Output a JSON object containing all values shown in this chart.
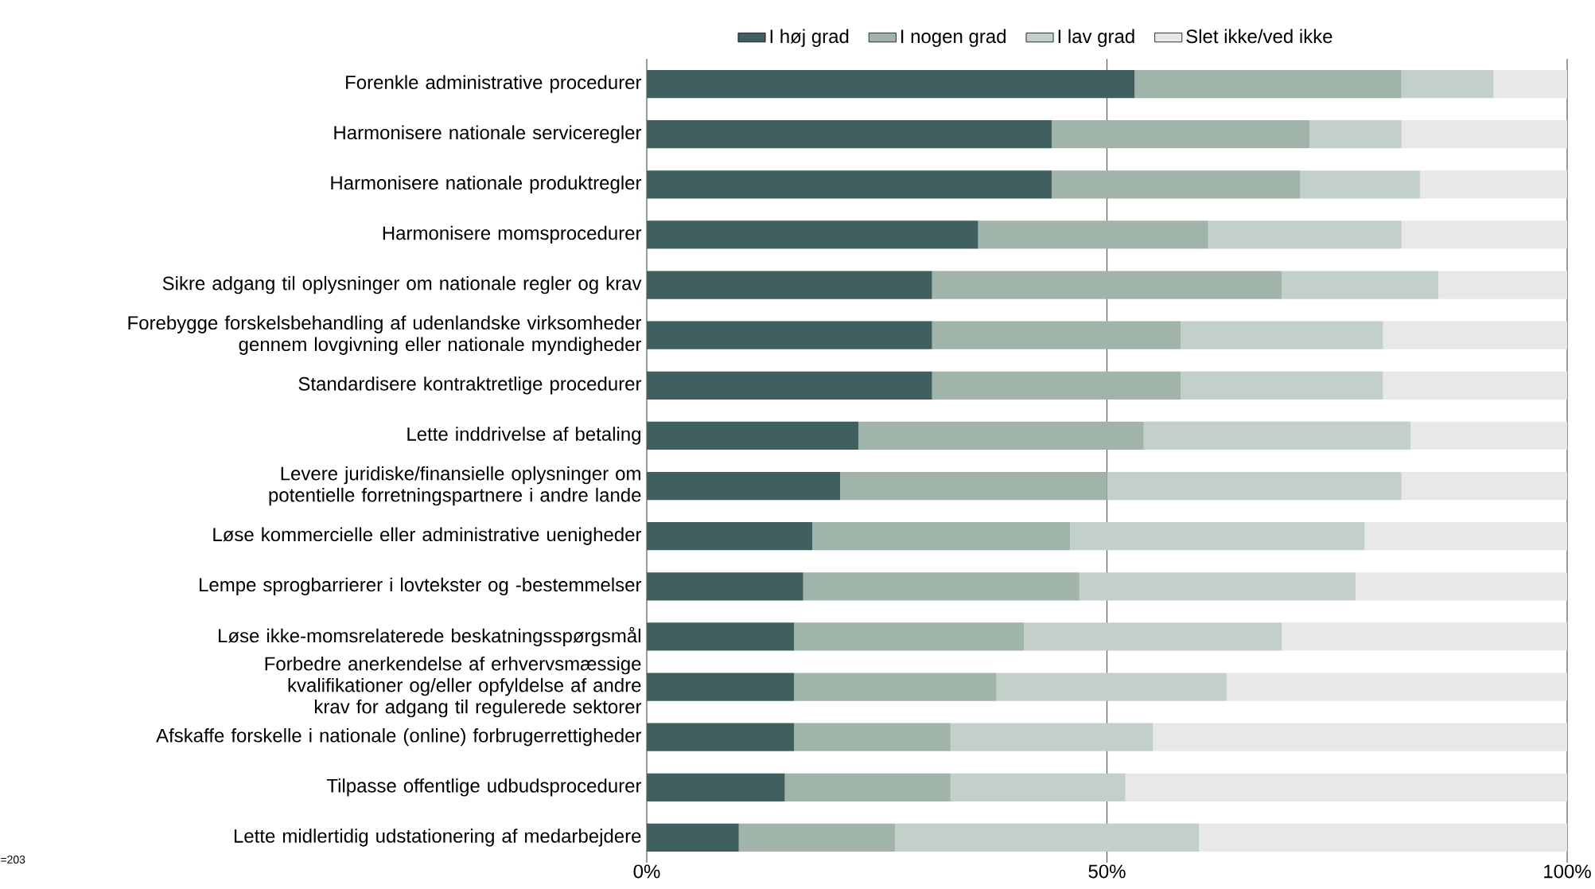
{
  "chart_data": {
    "type": "bar",
    "orientation": "horizontal",
    "stacked": true,
    "categories": [
      "Forenkle administrative procedurer",
      "Harmonisere nationale serviceregler",
      "Harmonisere nationale produktregler",
      "Harmonisere momsprocedurer",
      "Sikre adgang til oplysninger om nationale regler og krav",
      "Forebygge forskelsbehandling af udenlandske virksomheder gennem lovgivning eller nationale myndigheder",
      "Standardisere kontraktretlige procedurer",
      "Lette inddrivelse af betaling",
      "Levere juridiske/finansielle oplysninger om potentielle forretningspartnere i andre lande",
      "Løse kommercielle eller administrative uenigheder",
      "Lempe sprogbarrierer i lovtekster og -bestemmelser",
      "Løse ikke-momsrelaterede beskatningsspørgsmål",
      "Forbedre anerkendelse af erhvervsmæssige kvalifikationer og/eller opfyldelse af andre krav for adgang til regulerede sektorer",
      "Afskaffe forskelle i nationale (online) forbrugerrettigheder",
      "Tilpasse offentlige udbudsprocedurer",
      "Lette midlertidig udstationering af medarbejdere"
    ],
    "series": [
      {
        "name": "I høj grad",
        "color": "#3f605e",
        "values": [
          53,
          44,
          44,
          36,
          31,
          31,
          31,
          23,
          21,
          18,
          17,
          16,
          16,
          16,
          15,
          10
        ]
      },
      {
        "name": "I nogen grad",
        "color": "#a1b4aa",
        "values": [
          29,
          28,
          27,
          25,
          38,
          27,
          27,
          31,
          29,
          28,
          30,
          25,
          22,
          17,
          18,
          17
        ]
      },
      {
        "name": "I lav grad",
        "color": "#c3cfc9",
        "values": [
          10,
          10,
          13,
          21,
          17,
          22,
          22,
          29,
          32,
          32,
          30,
          28,
          25,
          22,
          19,
          33
        ]
      },
      {
        "name": "Slet ikke/ved ikke",
        "color": "#e8e8e8",
        "values": [
          8,
          18,
          16,
          18,
          14,
          20,
          20,
          17,
          18,
          22,
          23,
          31,
          37,
          45,
          48,
          40
        ]
      }
    ],
    "xlim": [
      0,
      100
    ],
    "xticks": [
      {
        "value": 0,
        "label": "0%"
      },
      {
        "value": 50,
        "label": "50%"
      },
      {
        "value": 100,
        "label": "100%"
      }
    ],
    "grid": "x",
    "legend": "top",
    "annotations": [
      "=203"
    ]
  }
}
